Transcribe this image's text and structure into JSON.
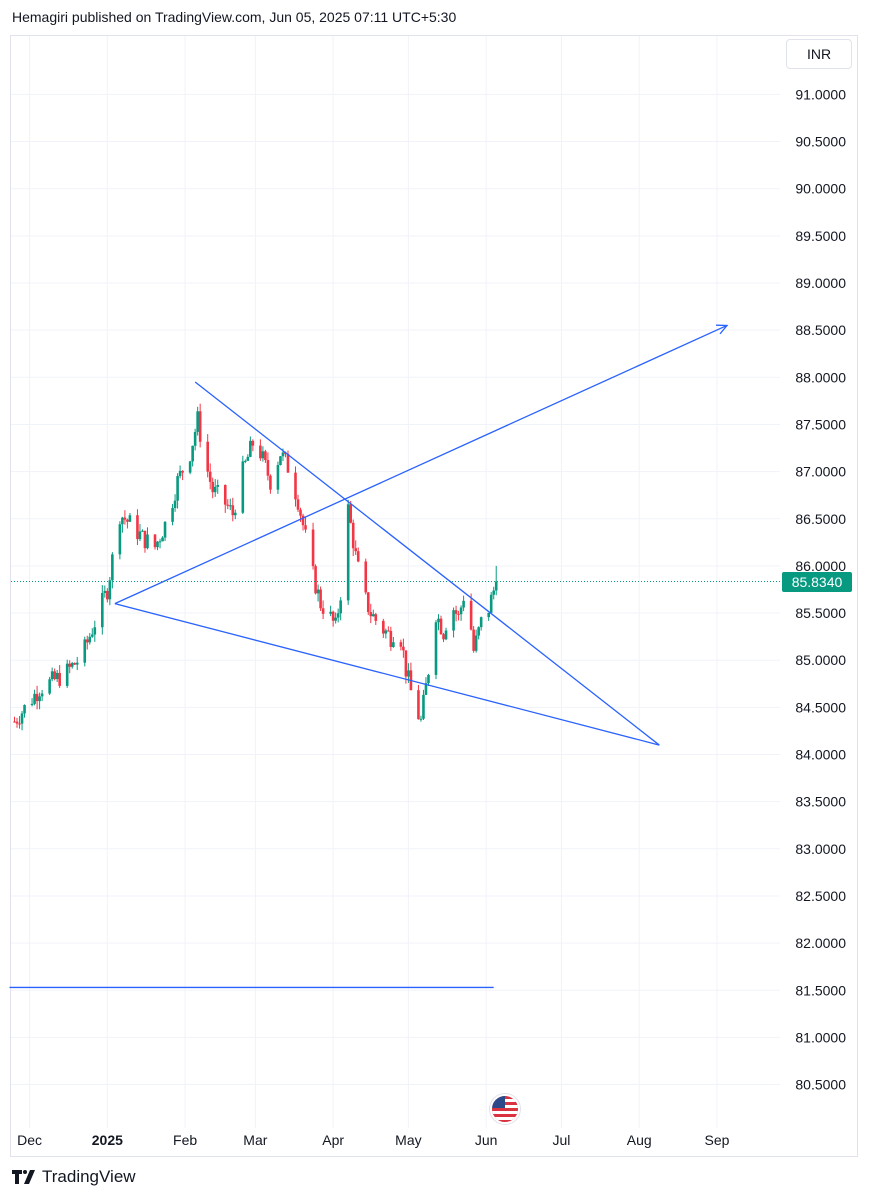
{
  "header": {
    "publisher_text": "Hemagiri published on TradingView.com, Jun 05, 2025 07:11 UTC+5:30"
  },
  "axis": {
    "currency": "INR"
  },
  "footer": {
    "brand": "TradingView"
  },
  "colors": {
    "up": "#089981",
    "down": "#f23645",
    "trendline": "#2962ff",
    "grid": "#f0f3fa",
    "last_price": "#089981"
  },
  "chart_data": {
    "type": "candlestick",
    "title": "",
    "y_range": [
      80.2,
      91.6
    ],
    "y_ticks": [
      "91.0000",
      "90.5000",
      "90.0000",
      "89.5000",
      "89.0000",
      "88.5000",
      "88.0000",
      "87.5000",
      "87.0000",
      "86.5000",
      "86.0000",
      "85.5000",
      "85.0000",
      "84.5000",
      "84.0000",
      "83.5000",
      "83.0000",
      "82.5000",
      "82.0000",
      "81.5000",
      "81.0000",
      "80.5000"
    ],
    "x_ticks": [
      "Dec",
      "2025",
      "Feb",
      "Mar",
      "Apr",
      "May",
      "Jun",
      "Jul",
      "Aug",
      "Sep"
    ],
    "x_tick_dates": [
      "2024-12-01",
      "2025-01-01",
      "2025-02-01",
      "2025-03-01",
      "2025-04-01",
      "2025-05-01",
      "2025-06-01",
      "2025-07-01",
      "2025-08-01",
      "2025-09-01"
    ],
    "last_price": "85.8340",
    "last_price_value": 85.834,
    "close_path": [
      [
        "2024-11-25",
        84.35
      ],
      [
        "2024-12-05",
        84.7
      ],
      [
        "2024-12-15",
        84.85
      ],
      [
        "2024-12-22",
        85.05
      ],
      [
        "2024-12-27",
        85.4
      ],
      [
        "2025-01-01",
        85.75
      ],
      [
        "2025-01-06",
        86.55
      ],
      [
        "2025-01-10",
        86.45
      ],
      [
        "2025-01-15",
        86.3
      ],
      [
        "2025-01-20",
        86.2
      ],
      [
        "2025-01-25",
        86.5
      ],
      [
        "2025-01-29",
        86.9
      ],
      [
        "2025-02-03",
        87.2
      ],
      [
        "2025-02-06",
        87.55
      ],
      [
        "2025-02-09",
        87.1
      ],
      [
        "2025-02-12",
        86.8
      ],
      [
        "2025-02-16",
        86.7
      ],
      [
        "2025-02-20",
        86.55
      ],
      [
        "2025-02-24",
        87.0
      ],
      [
        "2025-02-28",
        87.3
      ],
      [
        "2025-03-03",
        87.2
      ],
      [
        "2025-03-07",
        86.9
      ],
      [
        "2025-03-11",
        87.2
      ],
      [
        "2025-03-14",
        87.05
      ],
      [
        "2025-03-18",
        86.7
      ],
      [
        "2025-03-21",
        86.3
      ],
      [
        "2025-03-24",
        85.9
      ],
      [
        "2025-03-27",
        85.6
      ],
      [
        "2025-03-30",
        85.5
      ],
      [
        "2025-04-02",
        85.35
      ],
      [
        "2025-04-05",
        85.9
      ],
      [
        "2025-04-07",
        86.6
      ],
      [
        "2025-04-10",
        86.1
      ],
      [
        "2025-04-13",
        85.7
      ],
      [
        "2025-04-16",
        85.5
      ],
      [
        "2025-04-20",
        85.35
      ],
      [
        "2025-04-24",
        85.25
      ],
      [
        "2025-04-27",
        85.4
      ],
      [
        "2025-04-30",
        84.9
      ],
      [
        "2025-05-03",
        84.55
      ],
      [
        "2025-05-06",
        84.35
      ],
      [
        "2025-05-09",
        84.9
      ],
      [
        "2025-05-12",
        85.5
      ],
      [
        "2025-05-15",
        85.3
      ],
      [
        "2025-05-18",
        85.6
      ],
      [
        "2025-05-21",
        85.45
      ],
      [
        "2025-05-24",
        85.8
      ],
      [
        "2025-05-27",
        85.1
      ],
      [
        "2025-05-30",
        85.4
      ],
      [
        "2025-06-02",
        85.55
      ],
      [
        "2025-06-05",
        85.834
      ]
    ],
    "trendlines": [
      {
        "from": [
          "2025-02-05",
          87.95
        ],
        "to": [
          "2025-08-09",
          84.1
        ]
      },
      {
        "from": [
          "2025-01-04",
          85.6
        ],
        "to": [
          "2025-08-09",
          84.1
        ]
      },
      {
        "from": [
          "2025-01-04",
          85.6
        ],
        "to": [
          "2025-09-05",
          88.55
        ],
        "arrow": true
      },
      {
        "from": [
          "2024-11-23",
          81.53
        ],
        "to": [
          "2025-06-04",
          81.53
        ]
      }
    ]
  }
}
